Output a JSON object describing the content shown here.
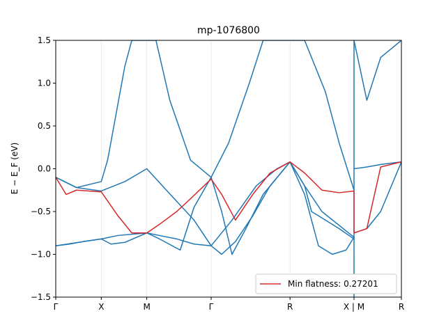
{
  "chart_data": {
    "type": "line",
    "title": "mp-1076800",
    "ylabel": "E − E_F (eV)",
    "xlabel": "",
    "ylim": [
      -1.5,
      1.5
    ],
    "xlim": [
      0,
      1
    ],
    "grid": false,
    "legend_position": "lower-right",
    "y_ticks": [
      -1.5,
      -1.0,
      -0.5,
      0.0,
      0.5,
      1.0,
      1.5
    ],
    "y_tick_labels": [
      "−1.5",
      "−1.0",
      "−0.5",
      "0.0",
      "0.5",
      "1.0",
      "1.5"
    ],
    "kpoints": [
      {
        "label": "Γ",
        "x": 0.0
      },
      {
        "label": "X",
        "x": 0.1317
      },
      {
        "label": "M",
        "x": 0.2634
      },
      {
        "label": "Γ",
        "x": 0.4496
      },
      {
        "label": "R",
        "x": 0.6778
      },
      {
        "label": "X | M",
        "x": 0.8629
      },
      {
        "label": "R",
        "x": 1.0
      }
    ],
    "colors": {
      "bands": "#1f77b4",
      "flat": "#d62728",
      "spine": "#000000"
    },
    "legend": [
      {
        "label": "Min flatness: 0.27201",
        "color": "#d62728"
      }
    ],
    "series": [
      {
        "name": "band1",
        "color": "#1f77b4",
        "x": [
          0.0,
          0.04,
          0.08,
          0.1317,
          0.16,
          0.2,
          0.2634,
          0.3,
          0.35,
          0.4,
          0.4496,
          0.48,
          0.52,
          0.57,
          0.62,
          0.6778,
          0.72,
          0.76,
          0.8,
          0.84,
          0.8629
        ],
        "y": [
          -0.9,
          -0.88,
          -0.85,
          -0.82,
          -0.88,
          -0.86,
          -0.75,
          -0.78,
          -0.82,
          -0.88,
          -0.9,
          -1.0,
          -0.85,
          -0.55,
          -0.2,
          0.08,
          -0.3,
          -0.9,
          -1.0,
          -0.95,
          -0.8
        ]
      },
      {
        "name": "band2",
        "color": "#1f77b4",
        "x": [
          0.0,
          0.05,
          0.1317,
          0.18,
          0.2634,
          0.3,
          0.36,
          0.4,
          0.4496,
          0.48,
          0.51,
          0.55,
          0.6,
          0.6778,
          0.72,
          0.74,
          0.78,
          0.82,
          0.8629
        ],
        "y": [
          -0.9,
          -0.87,
          -0.82,
          -0.78,
          -0.75,
          -0.82,
          -0.95,
          -0.45,
          -0.1,
          -0.5,
          -1.0,
          -0.7,
          -0.3,
          0.08,
          -0.2,
          -0.5,
          -0.6,
          -0.7,
          -0.82
        ]
      },
      {
        "name": "band3",
        "color": "#1f77b4",
        "x": [
          0.0,
          0.06,
          0.1317,
          0.2,
          0.2634,
          0.32,
          0.4,
          0.4496,
          0.51,
          0.58,
          0.64,
          0.6778,
          0.72,
          0.77,
          0.8629
        ],
        "y": [
          -0.1,
          -0.22,
          -0.26,
          -0.15,
          0.0,
          -0.25,
          -0.6,
          -0.9,
          -0.6,
          -0.2,
          0.0,
          0.08,
          -0.2,
          -0.5,
          -0.8
        ]
      },
      {
        "name": "band4",
        "color": "#1f77b4",
        "x": [
          0.0,
          0.06,
          0.1317,
          0.15,
          0.2,
          0.22,
          0.24,
          0.2634,
          0.29,
          0.33,
          0.39,
          0.4496,
          0.5,
          0.56,
          0.6,
          0.6778,
          0.72,
          0.78,
          0.82,
          0.8629
        ],
        "y": [
          -0.1,
          -0.22,
          -0.15,
          0.1,
          1.2,
          1.5,
          1.5,
          1.5,
          1.5,
          0.8,
          0.1,
          -0.1,
          0.3,
          1.0,
          1.5,
          1.5,
          1.5,
          0.9,
          0.3,
          -0.25
        ]
      },
      {
        "name": "band5",
        "color": "#1f77b4",
        "x": [
          0.8629,
          0.9,
          0.94,
          1.0
        ],
        "y": [
          1.5,
          0.8,
          1.3,
          1.5
        ]
      },
      {
        "name": "band6",
        "color": "#1f77b4",
        "x": [
          0.8629,
          0.9,
          0.94,
          1.0
        ],
        "y": [
          0.0,
          0.02,
          0.05,
          0.08
        ]
      },
      {
        "name": "band7",
        "color": "#1f77b4",
        "x": [
          0.8629,
          0.9,
          0.94,
          1.0
        ],
        "y": [
          -0.75,
          -0.7,
          -0.5,
          0.08
        ]
      },
      {
        "name": "flat-band",
        "color": "#d62728",
        "x": [
          0.0,
          0.03,
          0.06,
          0.1317,
          0.18,
          0.22,
          0.2634,
          0.3,
          0.35,
          0.39,
          0.4496,
          0.48,
          0.52,
          0.57,
          0.62,
          0.6778,
          0.72,
          0.77,
          0.82,
          0.8629,
          0.8629,
          0.9,
          0.94,
          1.0
        ],
        "y": [
          -0.1,
          -0.3,
          -0.25,
          -0.27,
          -0.55,
          -0.75,
          -0.75,
          -0.65,
          -0.5,
          -0.35,
          -0.12,
          -0.3,
          -0.6,
          -0.3,
          -0.05,
          0.08,
          -0.05,
          -0.25,
          -0.28,
          -0.26,
          -0.75,
          -0.7,
          0.02,
          0.08
        ]
      }
    ]
  }
}
